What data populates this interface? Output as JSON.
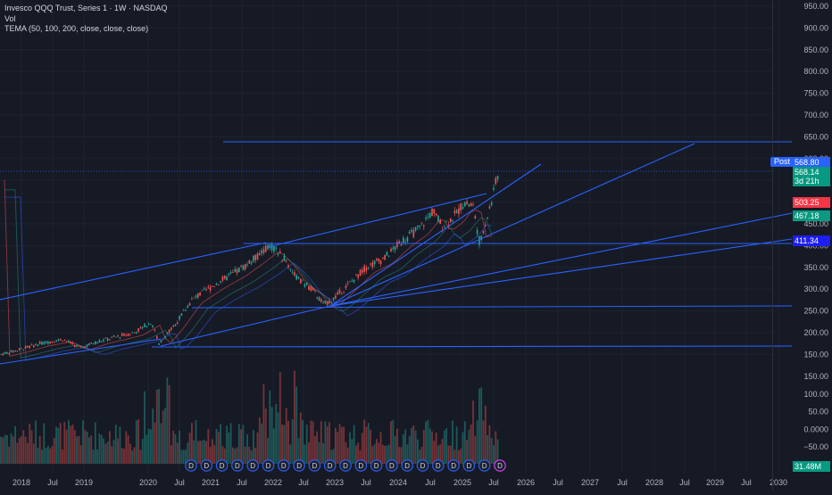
{
  "legend": {
    "title": "Invesco QQQ Trust, Series 1 · 1W · NASDAQ",
    "vol": "Vol",
    "tema": "TEMA (50, 100, 200, close, close, close)"
  },
  "price_axis": {
    "labels": [
      "950.00",
      "900.00",
      "850.00",
      "800.00",
      "750.00",
      "700.00",
      "650.00",
      "600.00",
      "550.00",
      "500.00",
      "450.00",
      "400.00",
      "350.00",
      "300.00",
      "250.00",
      "200.00",
      "150.00"
    ],
    "volume_labels": [
      "150.00",
      "100.00",
      "50.00",
      "0.0000",
      "−50.00",
      "−100.00"
    ]
  },
  "time_axis": {
    "labels": [
      "2018",
      "Jul",
      "2019",
      "2020",
      "Jul",
      "2021",
      "Jul",
      "2022",
      "Jul",
      "2023",
      "Jul",
      "2024",
      "Jul",
      "2025",
      "Jul",
      "2026",
      "Jul",
      "2027",
      "Jul",
      "2028",
      "Jul",
      "2029",
      "Jul",
      "2030"
    ]
  },
  "price_tags": {
    "post_label": "Post",
    "post_price": "568.80",
    "last_price": "568.14",
    "countdown": "3d 21h",
    "red_level": "503.25",
    "green_level": "467.18",
    "blue_level": "411.34",
    "volume_value": "31.48M"
  },
  "event_markers": {
    "dividend_letter": "D",
    "count": 21
  },
  "colors": {
    "background": "#161a25",
    "up": "#26a69a",
    "down": "#ef5350",
    "trendline": "#2962ff",
    "post_badge": "#2962ff",
    "last_price": "#089981",
    "red_tag": "#f23645",
    "green_tag": "#089981",
    "blue_tag": "#1e1ef0"
  }
}
